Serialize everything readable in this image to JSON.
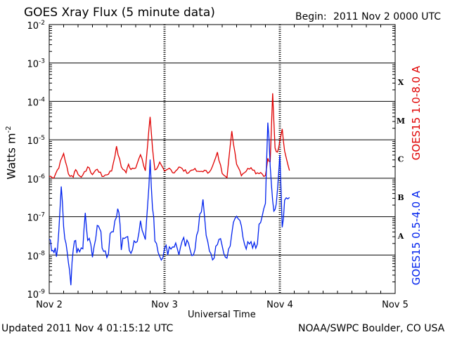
{
  "chart_data": {
    "type": "line",
    "title": "GOES Xray Flux (5 minute data)",
    "begin_label": "Begin:",
    "begin_value": "2011 Nov 2 0000 UTC",
    "xlabel": "Universal Time",
    "ylabel_main": "Watts m",
    "ylabel_exp": "-2",
    "xlim_hours": [
      0,
      72
    ],
    "ylim_log10": [
      -9,
      -2
    ],
    "x_ticks": [
      {
        "hour": 0,
        "label": "Nov 2"
      },
      {
        "hour": 24,
        "label": "Nov 3"
      },
      {
        "hour": 48,
        "label": "Nov 4"
      },
      {
        "hour": 72,
        "label": "Nov 5"
      }
    ],
    "y_ticks": [
      {
        "exp": -2,
        "base": "10",
        "sup": "-2"
      },
      {
        "exp": -3,
        "base": "10",
        "sup": "-3"
      },
      {
        "exp": -4,
        "base": "10",
        "sup": "-4"
      },
      {
        "exp": -5,
        "base": "10",
        "sup": "-5"
      },
      {
        "exp": -6,
        "base": "10",
        "sup": "-6"
      },
      {
        "exp": -7,
        "base": "10",
        "sup": "-7"
      },
      {
        "exp": -8,
        "base": "10",
        "sup": "-8"
      },
      {
        "exp": -9,
        "base": "10",
        "sup": "-9"
      }
    ],
    "flare_classes": [
      {
        "label": "X",
        "exp": -3.5
      },
      {
        "label": "M",
        "exp": -4.5
      },
      {
        "label": "C",
        "exp": -5.5
      },
      {
        "label": "B",
        "exp": -6.5
      },
      {
        "label": "A",
        "exp": -7.5
      }
    ],
    "series": [
      {
        "name": "GOES15 1.0-8.0 A",
        "color": "#e00000",
        "hours": [
          0,
          1,
          2,
          3,
          4,
          5,
          5.5,
          6,
          7,
          8,
          9,
          10,
          11,
          12,
          13,
          14,
          15,
          16,
          16.5,
          17,
          18,
          19,
          20,
          20.5,
          21,
          21.5,
          22,
          23,
          24,
          25,
          26,
          27,
          28,
          29,
          30,
          31,
          32,
          33,
          34,
          35,
          36,
          37,
          38,
          39,
          40,
          41,
          42,
          43,
          44,
          45,
          45.5,
          46,
          46.5,
          47,
          47.5,
          48,
          48.5,
          49,
          50
        ],
        "log10": [
          -5.95,
          -5.97,
          -5.7,
          -5.35,
          -5.9,
          -5.95,
          -5.75,
          -5.9,
          -5.95,
          -5.7,
          -5.9,
          -5.75,
          -5.95,
          -5.9,
          -5.8,
          -5.2,
          -5.7,
          -5.85,
          -5.65,
          -5.75,
          -5.7,
          -5.4,
          -5.8,
          -5.1,
          -4.4,
          -5.2,
          -5.8,
          -5.6,
          -5.85,
          -5.75,
          -5.85,
          -5.7,
          -5.8,
          -5.85,
          -5.75,
          -5.85,
          -5.8,
          -5.85,
          -5.7,
          -5.35,
          -5.85,
          -5.95,
          -4.8,
          -5.6,
          -5.9,
          -5.8,
          -5.7,
          -5.85,
          -5.85,
          -5.95,
          -5.5,
          -5.6,
          -3.8,
          -5.2,
          -5.35,
          -5.0,
          -4.7,
          -5.3,
          -5.8
        ]
      },
      {
        "name": "GOES15 0.5-4.0 A",
        "color": "#0022ee",
        "hours": [
          0,
          0.5,
          1,
          1.5,
          2,
          2.5,
          3,
          3.5,
          4,
          4.5,
          5,
          5.5,
          6,
          7,
          7.5,
          8,
          9,
          10,
          10.5,
          11,
          12,
          13,
          14,
          14.5,
          15,
          16,
          17,
          18,
          19,
          20,
          20.5,
          21,
          21.5,
          22,
          23,
          24,
          25,
          26,
          27,
          28,
          29,
          30,
          31,
          32,
          33,
          34,
          35,
          36,
          37,
          38,
          39,
          40,
          41,
          42,
          43,
          44,
          45,
          45.5,
          46,
          46.5,
          47,
          47.5,
          48,
          48.5,
          49,
          50
        ],
        "log10": [
          -7.6,
          -7.9,
          -7.8,
          -8.1,
          -7.5,
          -6.2,
          -7.4,
          -7.7,
          -8.3,
          -8.8,
          -7.9,
          -7.6,
          -8.0,
          -7.8,
          -7.0,
          -7.6,
          -7.9,
          -7.4,
          -7.2,
          -7.7,
          -8.0,
          -7.4,
          -6.9,
          -6.8,
          -7.8,
          -7.5,
          -7.9,
          -7.7,
          -7.1,
          -7.6,
          -6.5,
          -5.6,
          -6.8,
          -7.5,
          -8.0,
          -7.9,
          -7.8,
          -7.7,
          -7.9,
          -7.7,
          -7.8,
          -7.9,
          -7.4,
          -6.5,
          -7.8,
          -8.2,
          -7.6,
          -7.8,
          -8.1,
          -7.4,
          -7.0,
          -7.2,
          -7.8,
          -7.8,
          -7.8,
          -7.1,
          -6.5,
          -4.5,
          -5.8,
          -6.6,
          -6.8,
          -6.3,
          -5.3,
          -7.3,
          -6.6,
          -6.5
        ]
      }
    ]
  },
  "footer": {
    "updated": "Updated 2011 Nov  4 01:15:12 UTC",
    "credit": "NOAA/SWPC Boulder, CO USA"
  }
}
